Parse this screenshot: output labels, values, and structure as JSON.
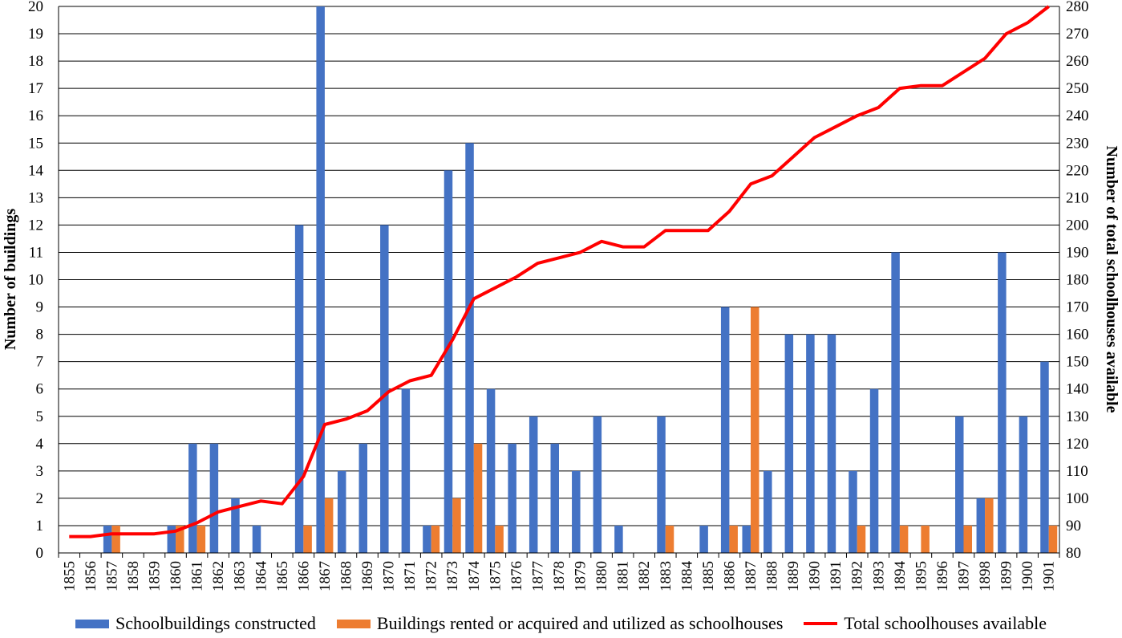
{
  "chart_data": {
    "type": "bar",
    "title": "",
    "xlabel": "",
    "ylabel": "Number of buildings",
    "y2label": "Number of total schoolhouses available",
    "ylim": [
      0,
      20
    ],
    "y2lim": [
      80,
      280
    ],
    "grid": true,
    "legend_position": "bottom",
    "categories": [
      "1855",
      "1856",
      "1857",
      "1858",
      "1859",
      "1860",
      "1861",
      "1862",
      "1863",
      "1864",
      "1865",
      "1866",
      "1867",
      "1868",
      "1869",
      "1870",
      "1871",
      "1872",
      "1873",
      "1874",
      "1875",
      "1876",
      "1877",
      "1878",
      "1879",
      "1880",
      "1881",
      "1882",
      "1883",
      "1884",
      "1885",
      "1886",
      "1887",
      "1888",
      "1889",
      "1890",
      "1891",
      "1892",
      "1893",
      "1894",
      "1895",
      "1896",
      "1897",
      "1898",
      "1899",
      "1900",
      "1901"
    ],
    "y_ticks": [
      "0",
      "1",
      "2",
      "3",
      "4",
      "5",
      "6",
      "7",
      "8",
      "9",
      "10",
      "11",
      "12",
      "13",
      "14",
      "15",
      "16",
      "17",
      "18",
      "19",
      "20"
    ],
    "y2_ticks": [
      "80",
      "90",
      "100",
      "110",
      "120",
      "130",
      "140",
      "150",
      "160",
      "170",
      "180",
      "190",
      "200",
      "210",
      "220",
      "230",
      "240",
      "250",
      "260",
      "270",
      "280"
    ],
    "series": [
      {
        "name": "Schoolbuildings constructed",
        "type": "bar",
        "axis": "left",
        "color": "#4472C4",
        "values": [
          0,
          0,
          1,
          0,
          0,
          1,
          4,
          4,
          2,
          1,
          0,
          12,
          20,
          3,
          4,
          12,
          6,
          1,
          14,
          15,
          6,
          4,
          5,
          4,
          3,
          5,
          1,
          0,
          5,
          0,
          1,
          9,
          1,
          3,
          8,
          8,
          8,
          3,
          6,
          11,
          0,
          0,
          5,
          2,
          11,
          5,
          7
        ]
      },
      {
        "name": "Buildings rented or acquired and utilized as schoolhouses",
        "type": "bar",
        "axis": "left",
        "color": "#ED7D31",
        "values": [
          0,
          0,
          1,
          0,
          0,
          1,
          1,
          0,
          0,
          0,
          0,
          1,
          2,
          0,
          0,
          0,
          0,
          1,
          2,
          4,
          1,
          0,
          0,
          0,
          0,
          0,
          0,
          0,
          1,
          0,
          0,
          1,
          9,
          0,
          0,
          0,
          0,
          1,
          0,
          1,
          1,
          0,
          1,
          2,
          0,
          0,
          1
        ]
      },
      {
        "name": "Total schoolhouses available",
        "type": "line",
        "axis": "right",
        "color": "#FF0000",
        "values": [
          86,
          86,
          87,
          87,
          87,
          88,
          91,
          95,
          97,
          99,
          98,
          108,
          127,
          129,
          132,
          139,
          143,
          145,
          158,
          173,
          177,
          181,
          186,
          188,
          190,
          194,
          192,
          192,
          198,
          198,
          198,
          205,
          215,
          218,
          225,
          232,
          236,
          240,
          243,
          250,
          251,
          251,
          256,
          261,
          270,
          274,
          280
        ]
      }
    ]
  }
}
